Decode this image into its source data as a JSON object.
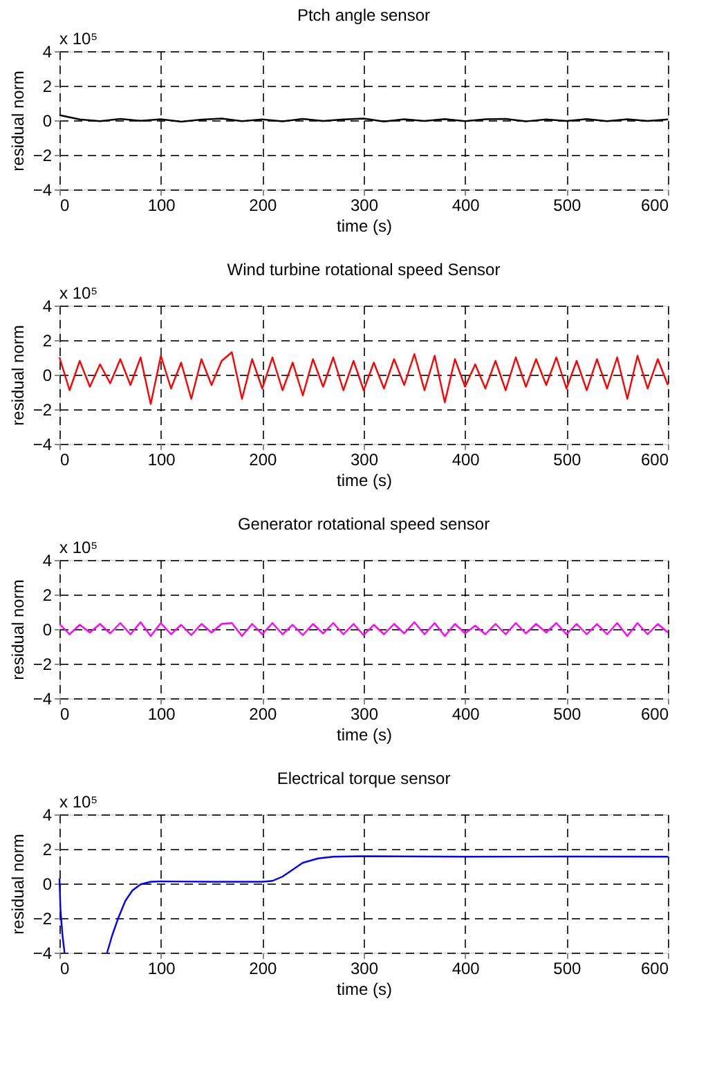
{
  "chart_data": [
    {
      "type": "line",
      "title": "Ptch angle sensor",
      "xlabel": "time (s)",
      "ylabel": "residual norm",
      "annotations": [
        "x 10⁵"
      ],
      "xlim": [
        0,
        600
      ],
      "xticks": [
        0,
        100,
        200,
        300,
        400,
        500,
        600
      ],
      "ylim": [
        -4,
        4
      ],
      "yticks": [
        -4,
        -2,
        0,
        2,
        4
      ],
      "grid": true,
      "line_style": "solid",
      "marker": "none",
      "series": [
        {
          "color": "#000000",
          "x": [
            0,
            20,
            40,
            60,
            80,
            100,
            120,
            140,
            160,
            180,
            200,
            220,
            240,
            260,
            280,
            300,
            320,
            340,
            360,
            380,
            400,
            420,
            440,
            460,
            480,
            500,
            520,
            540,
            560,
            580,
            600
          ],
          "values": [
            0.3,
            0.05,
            -0.05,
            0.08,
            -0.03,
            0.06,
            -0.08,
            0.04,
            0.1,
            -0.05,
            0.05,
            -0.06,
            0.08,
            -0.04,
            0.05,
            0.1,
            -0.07,
            0.06,
            -0.04,
            0.07,
            -0.05,
            0.06,
            0.08,
            -0.06,
            0.05,
            -0.04,
            0.07,
            -0.05,
            0.06,
            -0.04,
            0.05
          ]
        }
      ]
    },
    {
      "type": "line",
      "title": "Wind turbine rotational speed Sensor",
      "xlabel": "time (s)",
      "ylabel": "residual norm",
      "annotations": [
        "x 10⁵"
      ],
      "xlim": [
        0,
        600
      ],
      "xticks": [
        0,
        100,
        200,
        300,
        400,
        500,
        600
      ],
      "ylim": [
        -4,
        4
      ],
      "yticks": [
        -4,
        -2,
        0,
        2,
        4
      ],
      "grid": true,
      "line_style": "solid",
      "marker": "none",
      "series": [
        {
          "color": "#ff0000",
          "x": [
            0,
            10,
            20,
            30,
            40,
            50,
            60,
            70,
            80,
            90,
            100,
            110,
            120,
            130,
            140,
            150,
            160,
            170,
            180,
            190,
            200,
            210,
            220,
            230,
            240,
            250,
            260,
            270,
            280,
            290,
            300,
            310,
            320,
            330,
            340,
            350,
            360,
            370,
            380,
            390,
            400,
            410,
            420,
            430,
            440,
            450,
            460,
            470,
            480,
            490,
            500,
            510,
            520,
            530,
            540,
            550,
            560,
            570,
            580,
            590,
            600
          ],
          "values": [
            1.0,
            -0.9,
            0.8,
            -0.7,
            0.6,
            -0.5,
            0.9,
            -0.6,
            1.0,
            -1.7,
            1.1,
            -0.8,
            0.7,
            -1.4,
            0.9,
            -0.6,
            0.8,
            1.3,
            -1.4,
            0.9,
            -0.8,
            1.0,
            -0.9,
            0.7,
            -1.2,
            0.9,
            -0.7,
            1.0,
            -0.9,
            0.8,
            -0.9,
            0.7,
            -0.8,
            0.9,
            -0.6,
            1.2,
            -0.9,
            1.1,
            -1.6,
            0.9,
            -0.7,
            0.6,
            -0.8,
            0.8,
            -0.9,
            1.0,
            -0.7,
            0.9,
            -0.6,
            1.0,
            -0.8,
            0.8,
            -0.9,
            0.9,
            -0.8,
            1.0,
            -1.4,
            1.1,
            -0.8,
            0.9,
            -0.6
          ]
        }
      ]
    },
    {
      "type": "line",
      "title": "Generator rotational speed sensor",
      "xlabel": "time (s)",
      "ylabel": "residual norm",
      "annotations": [
        "x 10⁵"
      ],
      "xlim": [
        0,
        600
      ],
      "xticks": [
        0,
        100,
        200,
        300,
        400,
        500,
        600
      ],
      "ylim": [
        -4,
        4
      ],
      "yticks": [
        -4,
        -2,
        0,
        2,
        4
      ],
      "grid": true,
      "line_style": "solid",
      "marker": "none",
      "series": [
        {
          "color": "#ff00ff",
          "x": [
            0,
            10,
            20,
            30,
            40,
            50,
            60,
            70,
            80,
            90,
            100,
            110,
            120,
            130,
            140,
            150,
            160,
            170,
            180,
            190,
            200,
            210,
            220,
            230,
            240,
            250,
            260,
            270,
            280,
            290,
            300,
            310,
            320,
            330,
            340,
            350,
            360,
            370,
            380,
            390,
            400,
            410,
            420,
            430,
            440,
            450,
            460,
            470,
            480,
            490,
            500,
            510,
            520,
            530,
            540,
            550,
            560,
            570,
            580,
            590,
            600
          ],
          "values": [
            0.3,
            -0.3,
            0.25,
            -0.2,
            0.3,
            -0.25,
            0.35,
            -0.3,
            0.4,
            -0.4,
            0.35,
            -0.3,
            0.25,
            -0.35,
            0.3,
            -0.2,
            0.3,
            0.35,
            -0.4,
            0.3,
            -0.3,
            0.35,
            -0.3,
            0.25,
            -0.35,
            0.3,
            -0.25,
            0.35,
            -0.3,
            0.3,
            -0.35,
            0.25,
            -0.3,
            0.3,
            -0.25,
            0.4,
            -0.3,
            0.35,
            -0.4,
            0.3,
            -0.25,
            0.2,
            -0.3,
            0.3,
            -0.3,
            0.35,
            -0.25,
            0.3,
            -0.2,
            0.35,
            -0.3,
            0.3,
            -0.3,
            0.3,
            -0.3,
            0.35,
            -0.4,
            0.35,
            -0.3,
            0.3,
            -0.2
          ]
        }
      ]
    },
    {
      "type": "line",
      "title": "Electrical torque sensor",
      "xlabel": "time (s)",
      "ylabel": "residual norm",
      "annotations": [
        "x 10⁵"
      ],
      "xlim": [
        0,
        600
      ],
      "xticks": [
        0,
        100,
        200,
        300,
        400,
        500,
        600
      ],
      "ylim": [
        -4,
        4
      ],
      "yticks": [
        -4,
        -2,
        0,
        2,
        4
      ],
      "grid": true,
      "line_style": "solid",
      "marker": "none",
      "series": [
        {
          "color": "#0000ff",
          "x": [
            0,
            1,
            3,
            5,
            20,
            47,
            52,
            58,
            65,
            72,
            80,
            90,
            100,
            150,
            200,
            210,
            220,
            230,
            240,
            255,
            270,
            300,
            400,
            500,
            600
          ],
          "values": [
            0.3,
            -1.5,
            -3.0,
            -4.0,
            null,
            -4.0,
            -3.0,
            -2.0,
            -1.0,
            -0.4,
            -0.05,
            0.1,
            0.12,
            0.1,
            0.1,
            0.15,
            0.4,
            0.8,
            1.2,
            1.45,
            1.55,
            1.58,
            1.55,
            1.56,
            1.55
          ]
        }
      ]
    }
  ]
}
